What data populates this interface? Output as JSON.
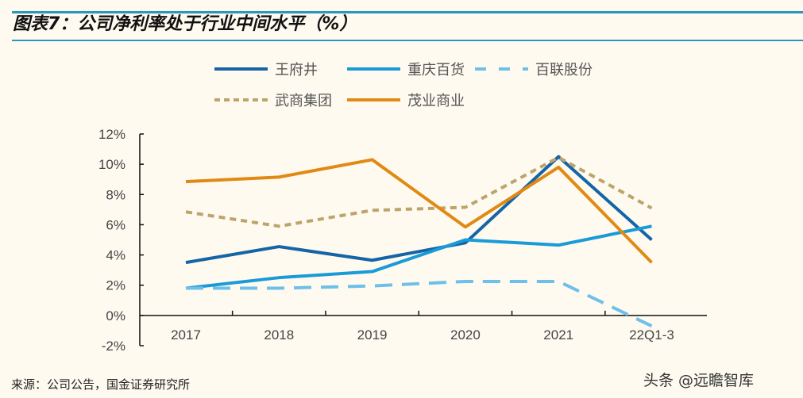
{
  "title": "图表7：公司净利率处于行业中间水平（%）",
  "source": "来源：公司公告，国金证券研究所",
  "watermark": "头条 @远瞻智库",
  "chart_data": {
    "type": "line",
    "categories": [
      "2017",
      "2018",
      "2019",
      "2020",
      "2021",
      "22Q1-3"
    ],
    "ylim": [
      -2,
      12
    ],
    "yticks": [
      "-2%",
      "0%",
      "2%",
      "4%",
      "6%",
      "8%",
      "10%",
      "12%"
    ],
    "ytick_values": [
      -2,
      0,
      2,
      4,
      6,
      8,
      10,
      12
    ],
    "legend": "top",
    "grid": false,
    "series": [
      {
        "name": "王府井",
        "color": "#1565a6",
        "dash": "solid",
        "values": [
          3.5,
          4.55,
          3.65,
          4.8,
          10.5,
          5.0
        ]
      },
      {
        "name": "重庆百货",
        "color": "#1a9bd7",
        "dash": "solid",
        "values": [
          1.8,
          2.5,
          2.9,
          5.0,
          4.65,
          5.9
        ]
      },
      {
        "name": "百联股份",
        "color": "#6cc0ea",
        "dash": "long-dash",
        "values": [
          1.8,
          1.8,
          1.95,
          2.25,
          2.25,
          -0.7
        ]
      },
      {
        "name": "武商集团",
        "color": "#bca46c",
        "dash": "short-dash",
        "values": [
          6.85,
          5.9,
          6.95,
          7.15,
          10.45,
          7.1
        ]
      },
      {
        "name": "茂业商业",
        "color": "#e08a14",
        "dash": "solid",
        "values": [
          8.85,
          9.15,
          10.3,
          5.85,
          9.8,
          3.5
        ]
      }
    ]
  }
}
